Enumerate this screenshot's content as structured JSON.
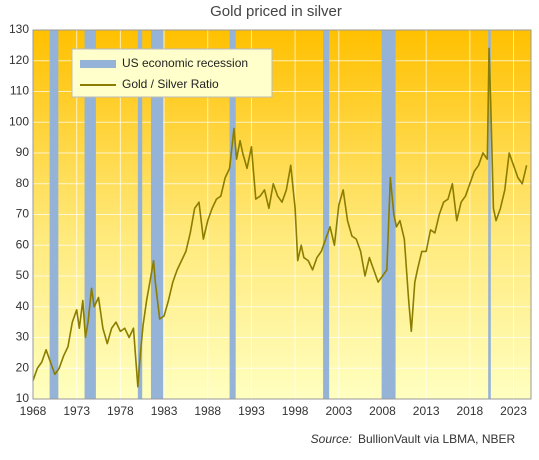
{
  "chart_data": {
    "type": "line",
    "title": "Gold priced in silver",
    "source_label": "Source:",
    "source_text": "BullionVault via LBMA, NBER",
    "xlim": [
      1968,
      2025
    ],
    "xticks": [
      1968,
      1973,
      1978,
      1983,
      1988,
      1993,
      1998,
      2003,
      2008,
      2013,
      2018,
      2023
    ],
    "ylim": [
      10,
      130
    ],
    "yticks": [
      10,
      20,
      30,
      40,
      50,
      60,
      70,
      80,
      90,
      100,
      110,
      120,
      130
    ],
    "grid": true,
    "recession_label": "US economic recession",
    "recession_color": "#95b3d7",
    "recessions": [
      [
        1969.9,
        1970.9
      ],
      [
        1973.9,
        1975.2
      ],
      [
        1980.0,
        1980.5
      ],
      [
        1981.5,
        1982.9
      ],
      [
        1990.5,
        1991.2
      ],
      [
        2001.2,
        2001.9
      ],
      [
        2007.9,
        2009.5
      ],
      [
        2020.1,
        2020.4
      ]
    ],
    "series": [
      {
        "name": "Gold / Silver Ratio",
        "color": "#8a7d00",
        "x": [
          1968.0,
          1968.5,
          1969,
          1969.5,
          1970,
          1970.5,
          1971,
          1971.5,
          1972,
          1972.5,
          1973,
          1973.3,
          1973.7,
          1974,
          1974.3,
          1974.7,
          1975,
          1975.5,
          1976,
          1976.5,
          1977,
          1977.5,
          1978,
          1978.5,
          1979,
          1979.5,
          1980,
          1980.3,
          1980.6,
          1981,
          1981.5,
          1981.8,
          1982,
          1982.5,
          1983,
          1983.5,
          1984,
          1984.5,
          1985,
          1985.5,
          1986,
          1986.5,
          1987,
          1987.5,
          1988,
          1988.5,
          1989,
          1989.5,
          1990,
          1990.5,
          1991,
          1991.3,
          1991.7,
          1992,
          1992.5,
          1993,
          1993.5,
          1994,
          1994.5,
          1995,
          1995.5,
          1996,
          1996.5,
          1997,
          1997.5,
          1998,
          1998.3,
          1998.7,
          1999,
          1999.5,
          2000,
          2000.5,
          2001,
          2001.5,
          2002,
          2002.5,
          2003,
          2003.5,
          2004,
          2004.5,
          2005,
          2005.5,
          2006,
          2006.5,
          2007,
          2007.5,
          2008,
          2008.5,
          2008.9,
          2009.3,
          2009.6,
          2010,
          2010.5,
          2011,
          2011.3,
          2011.7,
          2012,
          2012.5,
          2013,
          2013.5,
          2014,
          2014.5,
          2015,
          2015.5,
          2016,
          2016.5,
          2017,
          2017.5,
          2018,
          2018.5,
          2019,
          2019.5,
          2020,
          2020.2,
          2020.4,
          2020.7,
          2021,
          2021.5,
          2022,
          2022.5,
          2023,
          2023.5,
          2024,
          2024.5
        ],
        "values": [
          16,
          20,
          22,
          26,
          22,
          18,
          20,
          24,
          27,
          35,
          39,
          33,
          42,
          30,
          35,
          46,
          40,
          43,
          33,
          28,
          33,
          35,
          32,
          33,
          30,
          33,
          14,
          25,
          34,
          42,
          50,
          55,
          48,
          36,
          37,
          42,
          48,
          52,
          55,
          58,
          64,
          72,
          74,
          62,
          68,
          72,
          75,
          76,
          82,
          85,
          98,
          88,
          94,
          90,
          85,
          92,
          75,
          76,
          78,
          72,
          80,
          76,
          74,
          78,
          86,
          72,
          55,
          60,
          56,
          55,
          52,
          56,
          58,
          62,
          66,
          60,
          73,
          78,
          68,
          63,
          62,
          58,
          50,
          56,
          52,
          48,
          50,
          52,
          82,
          70,
          66,
          68,
          62,
          42,
          32,
          48,
          52,
          58,
          58,
          65,
          64,
          70,
          74,
          75,
          80,
          68,
          74,
          76,
          80,
          84,
          86,
          90,
          88,
          124,
          105,
          72,
          68,
          72,
          78,
          90,
          86,
          82,
          80,
          86
        ]
      }
    ]
  }
}
